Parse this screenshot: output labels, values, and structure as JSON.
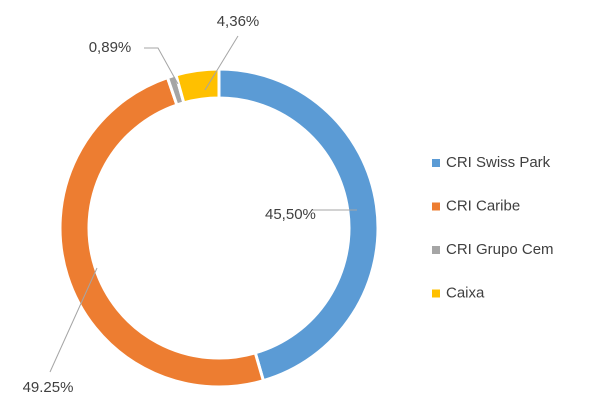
{
  "chart_data": {
    "type": "donut",
    "categories": [
      "CRI Swiss Park",
      "CRI Caribe",
      "CRI Grupo Cem",
      "Caixa"
    ],
    "values": [
      45.5,
      49.25,
      0.89,
      4.36
    ],
    "value_labels": [
      "45,50%",
      "49.25%",
      "0,89%",
      "4,36%"
    ],
    "colors": [
      "#5b9bd5",
      "#ed7d31",
      "#a5a5a5",
      "#ffc000"
    ],
    "legend": "right"
  }
}
